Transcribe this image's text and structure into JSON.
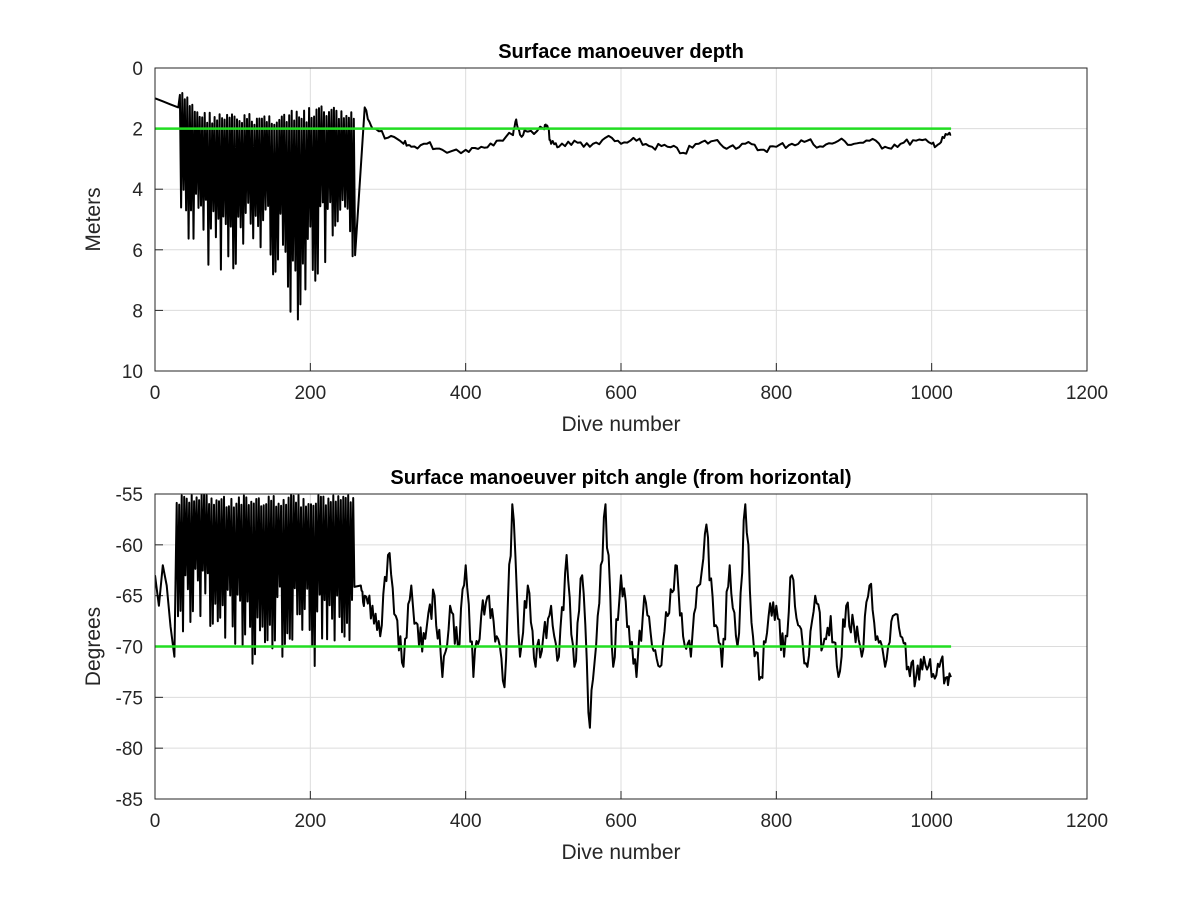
{
  "chart_data": [
    {
      "type": "line",
      "title": "Surface manoeuver depth",
      "xlabel": "Dive number",
      "ylabel": "Meters",
      "xlim": [
        0,
        1200
      ],
      "ylim": [
        0,
        10
      ],
      "y_reversed": true,
      "grid": true,
      "x_ticks": [
        "0",
        "200",
        "400",
        "600",
        "800",
        "1000",
        "1200"
      ],
      "y_ticks": [
        "0",
        "2",
        "4",
        "6",
        "8",
        "10"
      ],
      "reference_line": {
        "y": 2,
        "x_range": [
          0,
          1025
        ],
        "color": "#22dd22"
      },
      "series": [
        {
          "color": "#000000",
          "oscillation_band": {
            "x_range": [
              32,
              258
            ],
            "upper_envelope_x": [
              32,
              60,
              100,
              140,
              180,
              220,
              258
            ],
            "upper_envelope_y": [
              0.7,
              1.4,
              1.5,
              1.5,
              1.4,
              1.2,
              1.5
            ],
            "lower_envelope_y": [
              5.5,
              6.5,
              6.8,
              6.2,
              8.5,
              6.8,
              6.8
            ]
          },
          "x": [
            0,
            10,
            20,
            30,
            32,
            60,
            100,
            140,
            180,
            220,
            258,
            270,
            280,
            300,
            320,
            330,
            350,
            370,
            400,
            420,
            440,
            460,
            465,
            470,
            480,
            500,
            505,
            510,
            520,
            540,
            560,
            580,
            600,
            620,
            640,
            660,
            680,
            700,
            720,
            740,
            760,
            780,
            800,
            820,
            840,
            860,
            880,
            900,
            920,
            940,
            960,
            980,
            1000,
            1010,
            1020,
            1025
          ],
          "y": [
            1.0,
            1.1,
            1.2,
            1.3,
            1.3,
            1.4,
            1.5,
            1.5,
            1.4,
            1.3,
            1.4,
            1.3,
            2.0,
            2.3,
            2.5,
            2.6,
            2.5,
            2.7,
            2.7,
            2.6,
            2.4,
            2.2,
            1.7,
            2.2,
            2.1,
            2.0,
            1.9,
            2.5,
            2.6,
            2.4,
            2.6,
            2.3,
            2.5,
            2.4,
            2.6,
            2.6,
            2.8,
            2.5,
            2.4,
            2.6,
            2.5,
            2.7,
            2.6,
            2.5,
            2.4,
            2.6,
            2.4,
            2.5,
            2.4,
            2.6,
            2.5,
            2.4,
            2.5,
            2.5,
            2.2,
            2.2
          ]
        }
      ]
    },
    {
      "type": "line",
      "title": "Surface manoeuver pitch angle (from horizontal)",
      "xlabel": "Dive number",
      "ylabel": "Degrees",
      "xlim": [
        0,
        1200
      ],
      "ylim": [
        -85,
        -55
      ],
      "grid": true,
      "x_ticks": [
        "0",
        "200",
        "400",
        "600",
        "800",
        "1000",
        "1200"
      ],
      "y_ticks": [
        "-55",
        "-60",
        "-65",
        "-70",
        "-75",
        "-80",
        "-85"
      ],
      "reference_line": {
        "y": -70,
        "x_range": [
          0,
          1025
        ],
        "color": "#22dd22"
      },
      "series": [
        {
          "color": "#000000",
          "oscillation_band": {
            "x_range": [
              28,
              258
            ],
            "upper_envelope_x": [
              28,
              60,
              100,
              140,
              180,
              220,
              258
            ],
            "upper_envelope_y": [
              -55,
              -55,
              -55,
              -55,
              -55,
              -55,
              -55
            ],
            "lower_envelope_y": [
              -70,
              -67,
              -73,
              -72,
              -71,
              -73,
              -71
            ]
          },
          "x": [
            0,
            5,
            10,
            15,
            20,
            25,
            28,
            60,
            100,
            140,
            180,
            220,
            258,
            265,
            270,
            280,
            290,
            300,
            310,
            320,
            330,
            340,
            350,
            360,
            370,
            380,
            390,
            400,
            410,
            420,
            430,
            440,
            450,
            460,
            470,
            480,
            490,
            500,
            510,
            520,
            530,
            540,
            550,
            560,
            570,
            580,
            590,
            600,
            610,
            620,
            630,
            640,
            650,
            660,
            670,
            680,
            690,
            700,
            710,
            720,
            730,
            740,
            750,
            760,
            770,
            780,
            790,
            800,
            810,
            820,
            830,
            840,
            850,
            860,
            870,
            880,
            890,
            900,
            910,
            920,
            930,
            940,
            950,
            960,
            970,
            980,
            990,
            1000,
            1010,
            1020,
            1025
          ],
          "y": [
            -63,
            -66,
            -62,
            -64,
            -68,
            -71,
            -60,
            -64,
            -68,
            -64,
            -66,
            -68,
            -62,
            -64,
            -65,
            -66,
            -69,
            -61,
            -67,
            -72,
            -64,
            -70,
            -68,
            -65,
            -73,
            -66,
            -70,
            -62,
            -73,
            -67,
            -65,
            -69,
            -74,
            -56,
            -71,
            -64,
            -72,
            -69,
            -66,
            -71,
            -61,
            -72,
            -63,
            -78,
            -67,
            -56,
            -72,
            -63,
            -68,
            -73,
            -65,
            -70,
            -72,
            -67,
            -62,
            -69,
            -71,
            -64,
            -58,
            -68,
            -72,
            -62,
            -70,
            -56,
            -69,
            -73,
            -67,
            -66,
            -71,
            -63,
            -68,
            -72,
            -65,
            -70,
            -67,
            -73,
            -66,
            -68,
            -71,
            -64,
            -69,
            -72,
            -67,
            -69,
            -72,
            -73,
            -71,
            -73,
            -72,
            -73,
            -73
          ]
        }
      ]
    }
  ]
}
